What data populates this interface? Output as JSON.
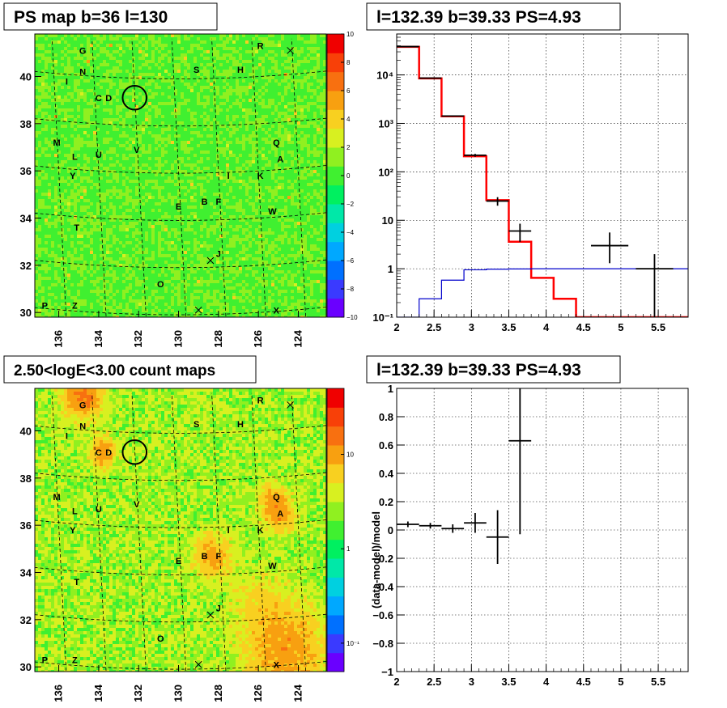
{
  "colors": {
    "red_model": "#ff0000",
    "blue_component": "#0000cc",
    "data_points": "#000000",
    "grid": "#000000",
    "palette": [
      "#6a00ff",
      "#3a3aff",
      "#0070ff",
      "#00a8ff",
      "#00d0e0",
      "#00e8a8",
      "#00f060",
      "#40f030",
      "#90f020",
      "#d8f020",
      "#f8d020",
      "#f8a010",
      "#f87010",
      "#f84008",
      "#f00000"
    ]
  },
  "chart_data": [
    {
      "type": "heatmap",
      "title": "PS map b=36 l=130",
      "x_ticks": [
        "136",
        "134",
        "132",
        "130",
        "128",
        "126",
        "124"
      ],
      "y_ticks": [
        "30",
        "32",
        "34",
        "36",
        "38",
        "40"
      ],
      "x_range": [
        137.2,
        122.6
      ],
      "y_range": [
        29.8,
        41.8
      ],
      "colorbar_ticks": [
        "10",
        "8",
        "6",
        "4",
        "2",
        "0",
        "−2",
        "−4",
        "−6",
        "−8",
        "−10"
      ],
      "colorbar_range": [
        -10,
        10
      ],
      "background_level": 0.5,
      "source_labels": [
        {
          "text": "G",
          "l": 134.8,
          "b": 41.1
        },
        {
          "text": "R",
          "l": 125.9,
          "b": 41.3
        },
        {
          "text": "N",
          "l": 134.8,
          "b": 40.2
        },
        {
          "text": "S",
          "l": 129.1,
          "b": 40.3
        },
        {
          "text": "H",
          "l": 126.9,
          "b": 40.3
        },
        {
          "text": "I",
          "l": 135.6,
          "b": 39.8
        },
        {
          "text": "C",
          "l": 134.0,
          "b": 39.1
        },
        {
          "text": "D",
          "l": 133.5,
          "b": 39.1
        },
        {
          "text": "M",
          "l": 136.1,
          "b": 37.2
        },
        {
          "text": "Q",
          "l": 125.1,
          "b": 37.2
        },
        {
          "text": "L",
          "l": 135.2,
          "b": 36.6
        },
        {
          "text": "U",
          "l": 134.0,
          "b": 36.7
        },
        {
          "text": "V",
          "l": 132.1,
          "b": 36.9
        },
        {
          "text": "A",
          "l": 124.9,
          "b": 36.5
        },
        {
          "text": "Y",
          "l": 135.3,
          "b": 35.8
        },
        {
          "text": "I",
          "l": 127.5,
          "b": 35.8
        },
        {
          "text": "K",
          "l": 125.9,
          "b": 35.8
        },
        {
          "text": "B",
          "l": 128.7,
          "b": 34.7
        },
        {
          "text": "F",
          "l": 128.0,
          "b": 34.7
        },
        {
          "text": "E",
          "l": 130.0,
          "b": 34.5
        },
        {
          "text": "W",
          "l": 125.3,
          "b": 34.3
        },
        {
          "text": "T",
          "l": 135.1,
          "b": 33.6
        },
        {
          "text": "J",
          "l": 128.0,
          "b": 32.5
        },
        {
          "text": "O",
          "l": 130.9,
          "b": 31.2
        },
        {
          "text": "P",
          "l": 136.7,
          "b": 30.3
        },
        {
          "text": "Z",
          "l": 135.2,
          "b": 30.3
        },
        {
          "text": "X",
          "l": 125.1,
          "b": 30.1
        }
      ],
      "x_markers": [
        {
          "l": 124.4,
          "b": 41.1
        },
        {
          "l": 128.4,
          "b": 32.2
        },
        {
          "l": 129.0,
          "b": 30.1
        }
      ],
      "circle": {
        "l": 132.2,
        "b": 39.1,
        "radius_deg": 0.6
      }
    },
    {
      "type": "line",
      "title": "l=132.39 b=39.33 PS=4.93",
      "x_ticks": [
        "2",
        "2.5",
        "3",
        "3.5",
        "4",
        "4.5",
        "5",
        "5.5"
      ],
      "y_ticks": [
        "10⁻¹",
        "1",
        "10",
        "10²",
        "10³",
        "10⁴"
      ],
      "xlim": [
        2.0,
        5.9
      ],
      "ylim": [
        0.1,
        70000
      ],
      "y_scale": "log",
      "grid": true,
      "bin_edges": [
        2.0,
        2.3,
        2.6,
        2.9,
        3.2,
        3.5,
        3.8,
        4.1,
        4.4,
        4.7,
        5.0,
        5.3,
        5.6,
        5.9
      ],
      "series": [
        {
          "values": [
            38000,
            8500,
            1400,
            210,
            26,
            3.6,
            0.65,
            0.24,
            0.1,
            0.1,
            0.1,
            0.1,
            0.1
          ]
        },
        {
          "values": [
            0.1,
            0.24,
            0.58,
            0.95,
            0.98,
            0.99,
            1.0,
            1.0,
            1.0,
            1.0,
            1.0,
            1.0,
            1.0
          ]
        }
      ],
      "points": [
        {
          "x": 2.15,
          "y": 38500,
          "xerr": 0.15,
          "ylo": 38300,
          "yhi": 38700
        },
        {
          "x": 2.45,
          "y": 8600,
          "xerr": 0.15,
          "ylo": 8500,
          "yhi": 8700
        },
        {
          "x": 2.75,
          "y": 1420,
          "xerr": 0.15,
          "ylo": 1380,
          "yhi": 1460
        },
        {
          "x": 3.05,
          "y": 220,
          "xerr": 0.15,
          "ylo": 205,
          "yhi": 235
        },
        {
          "x": 3.35,
          "y": 25,
          "xerr": 0.15,
          "ylo": 20,
          "yhi": 30
        },
        {
          "x": 3.65,
          "y": 6,
          "xerr": 0.15,
          "ylo": 3.6,
          "yhi": 8.5
        },
        {
          "x": 4.85,
          "y": 3,
          "xerr": 0.25,
          "ylo": 1.3,
          "yhi": 5.6
        },
        {
          "x": 5.45,
          "y": 1,
          "xerr": 0.25,
          "ylo": 0.1,
          "yhi": 2.0
        }
      ]
    },
    {
      "type": "heatmap",
      "title": "2.50<logE<3.00 count maps",
      "x_ticks": [
        "136",
        "134",
        "132",
        "130",
        "128",
        "126",
        "124"
      ],
      "y_ticks": [
        "30",
        "32",
        "34",
        "36",
        "38",
        "40"
      ],
      "x_range": [
        137.2,
        122.6
      ],
      "y_range": [
        29.8,
        41.8
      ],
      "colorbar_ticks": [
        "10",
        "1",
        "10⁻¹"
      ],
      "colorbar_scale": "log",
      "colorbar_range": [
        0.05,
        50
      ],
      "background_level": 3,
      "hot_spots": [
        {
          "l": 134.8,
          "b": 41.5,
          "amp": 14,
          "sigma": 0.6
        },
        {
          "l": 133.8,
          "b": 39.1,
          "amp": 8,
          "sigma": 0.45
        },
        {
          "l": 128.3,
          "b": 34.7,
          "amp": 8,
          "sigma": 0.6
        },
        {
          "l": 125.0,
          "b": 36.5,
          "amp": 9,
          "sigma": 0.5
        },
        {
          "l": 125.3,
          "b": 37.2,
          "amp": 5,
          "sigma": 0.45
        },
        {
          "l": 124.6,
          "b": 30.6,
          "amp": 9,
          "sigma": 1.2
        },
        {
          "l": 125.8,
          "b": 32.5,
          "amp": 3,
          "sigma": 1.0
        }
      ]
    },
    {
      "type": "scatter",
      "title": "l=132.39 b=39.33 PS=4.93",
      "ylabel": "(data-model)/model",
      "x_ticks": [
        "2",
        "2.5",
        "3",
        "3.5",
        "4",
        "4.5",
        "5",
        "5.5"
      ],
      "y_ticks": [
        "−1",
        "−0.8",
        "−0.6",
        "−0.4",
        "−0.2",
        "0",
        "0.2",
        "0.4",
        "0.6",
        "0.8",
        "1"
      ],
      "xlim": [
        2.0,
        5.9
      ],
      "ylim": [
        -1,
        1
      ],
      "grid": true,
      "points": [
        {
          "x": 2.15,
          "y": 0.04,
          "xerr": 0.15,
          "ylo": 0.02,
          "yhi": 0.06
        },
        {
          "x": 2.45,
          "y": 0.03,
          "xerr": 0.15,
          "ylo": 0.01,
          "yhi": 0.05
        },
        {
          "x": 2.75,
          "y": 0.01,
          "xerr": 0.15,
          "ylo": -0.02,
          "yhi": 0.04
        },
        {
          "x": 3.05,
          "y": 0.05,
          "xerr": 0.15,
          "ylo": -0.02,
          "yhi": 0.12
        },
        {
          "x": 3.35,
          "y": -0.05,
          "xerr": 0.15,
          "ylo": -0.24,
          "yhi": 0.14
        },
        {
          "x": 3.65,
          "y": 0.63,
          "xerr": 0.15,
          "ylo": -0.03,
          "yhi": 1.0
        }
      ]
    }
  ]
}
